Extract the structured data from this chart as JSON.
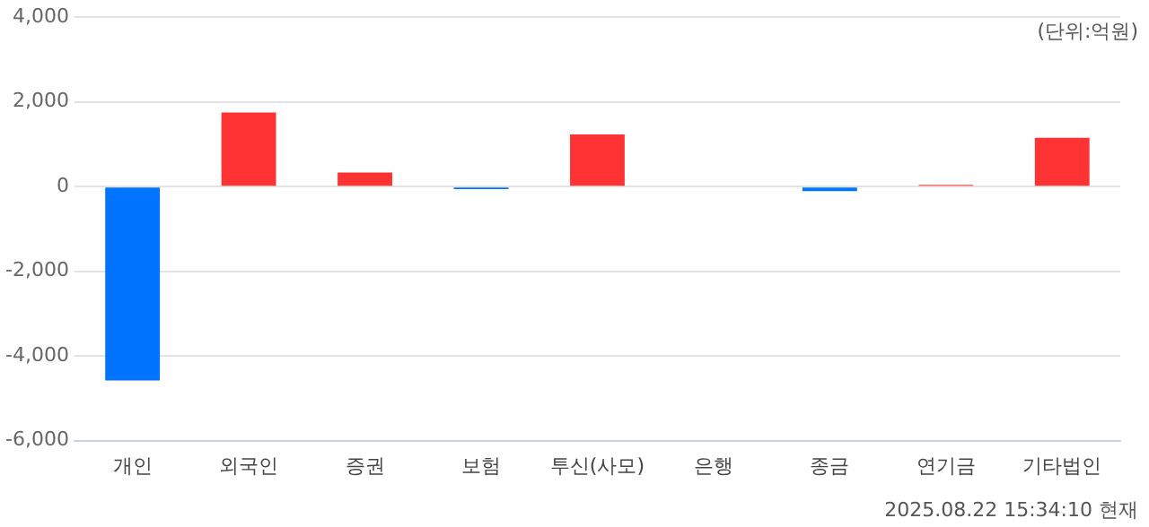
{
  "chart_data": {
    "type": "bar",
    "categories": [
      "개인",
      "외국인",
      "증권",
      "보험",
      "투신(사모)",
      "은행",
      "종금",
      "연기금",
      "기타법인"
    ],
    "values": [
      -4580,
      1750,
      330,
      -60,
      1230,
      0,
      -110,
      40,
      1150
    ],
    "colors": [
      "#0073ff",
      "#ff3333",
      "#ff3333",
      "#0073ff",
      "#ff3333",
      "#ff3333",
      "#0073ff",
      "#ff3333",
      "#ff3333"
    ],
    "ylim": [
      -6000,
      4000
    ],
    "yticks": [
      {
        "value": -6000,
        "label": "-6,000"
      },
      {
        "value": -4000,
        "label": "-4,000"
      },
      {
        "value": -2000,
        "label": "-2,000"
      },
      0,
      {
        "value": 2000,
        "label": "2,000"
      },
      {
        "value": 4000,
        "label": "4,000"
      }
    ],
    "grid": "y",
    "legend": false,
    "annotations": [
      "(단위:억원)",
      "2025.08.22 15:34:10 현재"
    ]
  }
}
